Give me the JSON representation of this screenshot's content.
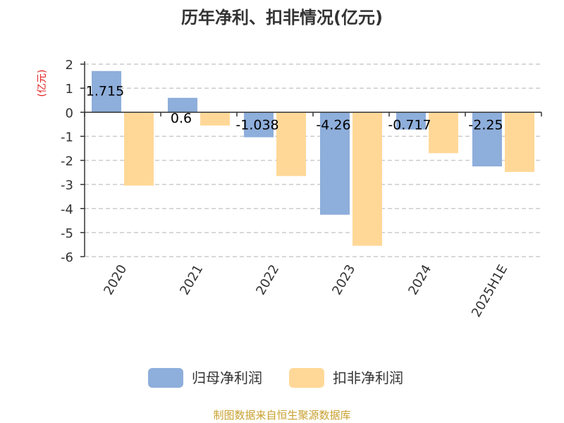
{
  "chart_data": {
    "type": "bar",
    "title": "历年净利、扣非情况(亿元)",
    "ylabel": "(亿元)",
    "xlabel": "",
    "categories": [
      "2020",
      "2021",
      "2022",
      "2023",
      "2024",
      "2025H1E"
    ],
    "yticks": [
      "2",
      "1",
      "0",
      "-1",
      "-2",
      "-3",
      "-4",
      "-5",
      "-6"
    ],
    "ylim": [
      -6,
      2
    ],
    "grid": true,
    "legend_position": "bottom",
    "series": [
      {
        "name": "归母净利润",
        "color": "#8eaedb",
        "values": [
          1.715,
          0.6,
          -1.038,
          -4.26,
          -0.717,
          -2.25
        ],
        "labels": [
          "1.715",
          "0.6",
          "-1.038",
          "-4.26",
          "-0.717",
          "-2.25"
        ]
      },
      {
        "name": "扣非净利润",
        "color": "#ffd898",
        "values": [
          -3.05,
          -0.55,
          -2.65,
          -5.55,
          -1.7,
          -2.48
        ]
      }
    ]
  },
  "source_text": "制图数据来自恒生聚源数据库",
  "colors": {
    "title": "#333333",
    "ylabel": "#e02020",
    "source": "#c8a030",
    "grid": "#cccccc",
    "axis": "#333333"
  }
}
